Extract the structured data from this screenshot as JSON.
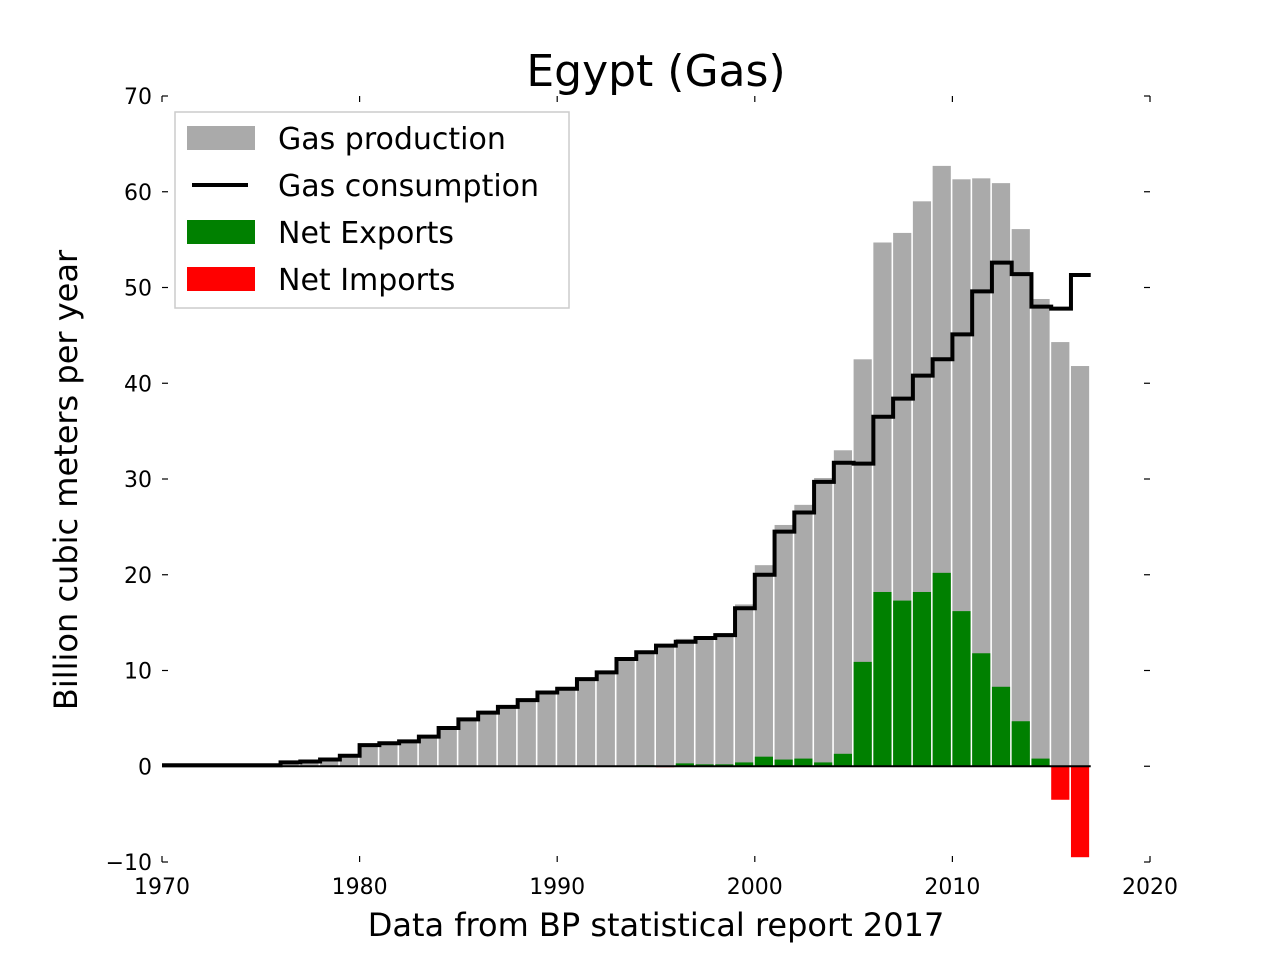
{
  "chart_data": {
    "type": "bar",
    "title": "Egypt (Gas)",
    "xlabel": "Data from BP statistical report 2017",
    "ylabel": "Billion cubic meters per year",
    "xlim": [
      1970,
      2020
    ],
    "ylim": [
      -10,
      70
    ],
    "x_ticks": [
      1970,
      1980,
      1990,
      2000,
      2010,
      2020
    ],
    "y_ticks": [
      -10,
      0,
      10,
      20,
      30,
      40,
      50,
      60,
      70
    ],
    "x_tick_labels": [
      "1970",
      "1980",
      "1990",
      "2000",
      "2010",
      "2020"
    ],
    "y_tick_labels": [
      "−10",
      "0",
      "10",
      "20",
      "30",
      "40",
      "50",
      "60",
      "70"
    ],
    "grid": false,
    "legend_position": "top-left",
    "years": [
      1970,
      1971,
      1972,
      1973,
      1974,
      1975,
      1976,
      1977,
      1978,
      1979,
      1980,
      1981,
      1982,
      1983,
      1984,
      1985,
      1986,
      1987,
      1988,
      1989,
      1990,
      1991,
      1992,
      1993,
      1994,
      1995,
      1996,
      1997,
      1998,
      1999,
      2000,
      2001,
      2002,
      2003,
      2004,
      2005,
      2006,
      2007,
      2008,
      2009,
      2010,
      2011,
      2012,
      2013,
      2014,
      2015,
      2016
    ],
    "series": [
      {
        "name": "Gas production",
        "color": "#aaaaaa",
        "kind": "bar",
        "values": [
          0.1,
          0.1,
          0.1,
          0.1,
          0.1,
          0.1,
          0.4,
          0.5,
          0.7,
          1.1,
          2.2,
          2.4,
          2.6,
          3.1,
          4.0,
          4.9,
          5.6,
          6.2,
          6.9,
          7.7,
          8.1,
          9.1,
          9.8,
          11.2,
          12.0,
          12.5,
          13.3,
          13.6,
          13.9,
          16.9,
          21.0,
          25.2,
          27.3,
          30.1,
          33.0,
          42.5,
          54.7,
          55.7,
          59.0,
          62.7,
          61.3,
          61.4,
          60.9,
          56.1,
          48.8,
          44.3,
          41.8
        ]
      },
      {
        "name": "Gas consumption",
        "color": "#000000",
        "kind": "step",
        "values": [
          0.1,
          0.1,
          0.1,
          0.1,
          0.1,
          0.1,
          0.4,
          0.5,
          0.7,
          1.1,
          2.2,
          2.4,
          2.6,
          3.1,
          4.0,
          4.9,
          5.6,
          6.2,
          6.9,
          7.7,
          8.1,
          9.1,
          9.8,
          11.2,
          11.9,
          12.6,
          13.0,
          13.4,
          13.7,
          16.5,
          20.0,
          24.5,
          26.5,
          29.7,
          31.7,
          31.6,
          36.5,
          38.4,
          40.8,
          42.5,
          45.1,
          49.6,
          52.6,
          51.4,
          48.0,
          47.8,
          51.3
        ]
      },
      {
        "name": "Net Exports",
        "color": "#008000",
        "kind": "bar",
        "values": [
          0,
          0,
          0,
          0,
          0,
          0,
          0,
          0,
          0,
          0,
          0,
          0,
          0,
          0,
          0,
          0,
          0,
          0,
          0,
          0,
          0,
          0,
          0,
          0,
          0.1,
          0,
          0.3,
          0.2,
          0.2,
          0.4,
          1.0,
          0.7,
          0.8,
          0.4,
          1.3,
          10.9,
          18.2,
          17.3,
          18.2,
          20.2,
          16.2,
          11.8,
          8.3,
          4.7,
          0.8,
          0,
          0
        ]
      },
      {
        "name": "Net Imports",
        "color": "#ff0000",
        "kind": "bar",
        "values": [
          0,
          0,
          0,
          0,
          0,
          0,
          0,
          0,
          0,
          0,
          0,
          0,
          0,
          0,
          0,
          0,
          0,
          0,
          0,
          0,
          0,
          0,
          0,
          0,
          0,
          -0.1,
          0,
          0,
          0,
          0,
          0,
          0,
          0,
          0,
          0,
          0,
          0,
          0,
          0,
          0,
          0,
          0,
          0,
          0,
          0,
          -3.5,
          -9.5
        ]
      }
    ]
  }
}
